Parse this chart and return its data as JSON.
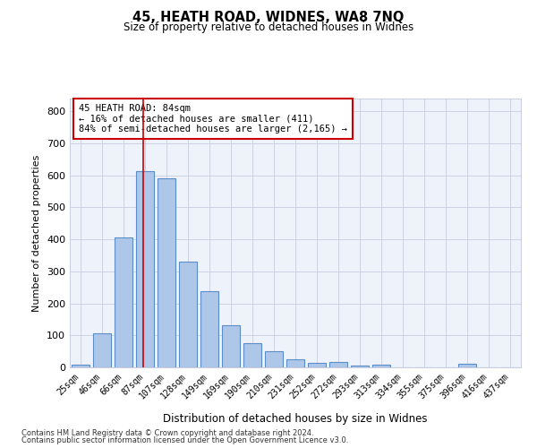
{
  "title_line1": "45, HEATH ROAD, WIDNES, WA8 7NQ",
  "title_line2": "Size of property relative to detached houses in Widnes",
  "xlabel": "Distribution of detached houses by size in Widnes",
  "ylabel": "Number of detached properties",
  "categories": [
    "25sqm",
    "46sqm",
    "66sqm",
    "87sqm",
    "107sqm",
    "128sqm",
    "149sqm",
    "169sqm",
    "190sqm",
    "210sqm",
    "231sqm",
    "252sqm",
    "272sqm",
    "293sqm",
    "313sqm",
    "334sqm",
    "355sqm",
    "375sqm",
    "396sqm",
    "416sqm",
    "437sqm"
  ],
  "values": [
    8,
    107,
    405,
    612,
    592,
    330,
    238,
    133,
    77,
    51,
    26,
    14,
    17,
    5,
    8,
    0,
    0,
    0,
    10,
    0,
    0
  ],
  "bar_color": "#aec6e8",
  "bar_edge_color": "#5b8ec8",
  "bar_width": 0.85,
  "vline_x": 2.9,
  "vline_color": "#cc0000",
  "annotation_text": "45 HEATH ROAD: 84sqm\n← 16% of detached houses are smaller (411)\n84% of semi-detached houses are larger (2,165) →",
  "ylim": [
    0,
    840
  ],
  "yticks": [
    0,
    100,
    200,
    300,
    400,
    500,
    600,
    700,
    800
  ],
  "bg_color": "#eef2fb",
  "grid_color": "#c8cde0",
  "footnote1": "Contains HM Land Registry data © Crown copyright and database right 2024.",
  "footnote2": "Contains public sector information licensed under the Open Government Licence v3.0."
}
